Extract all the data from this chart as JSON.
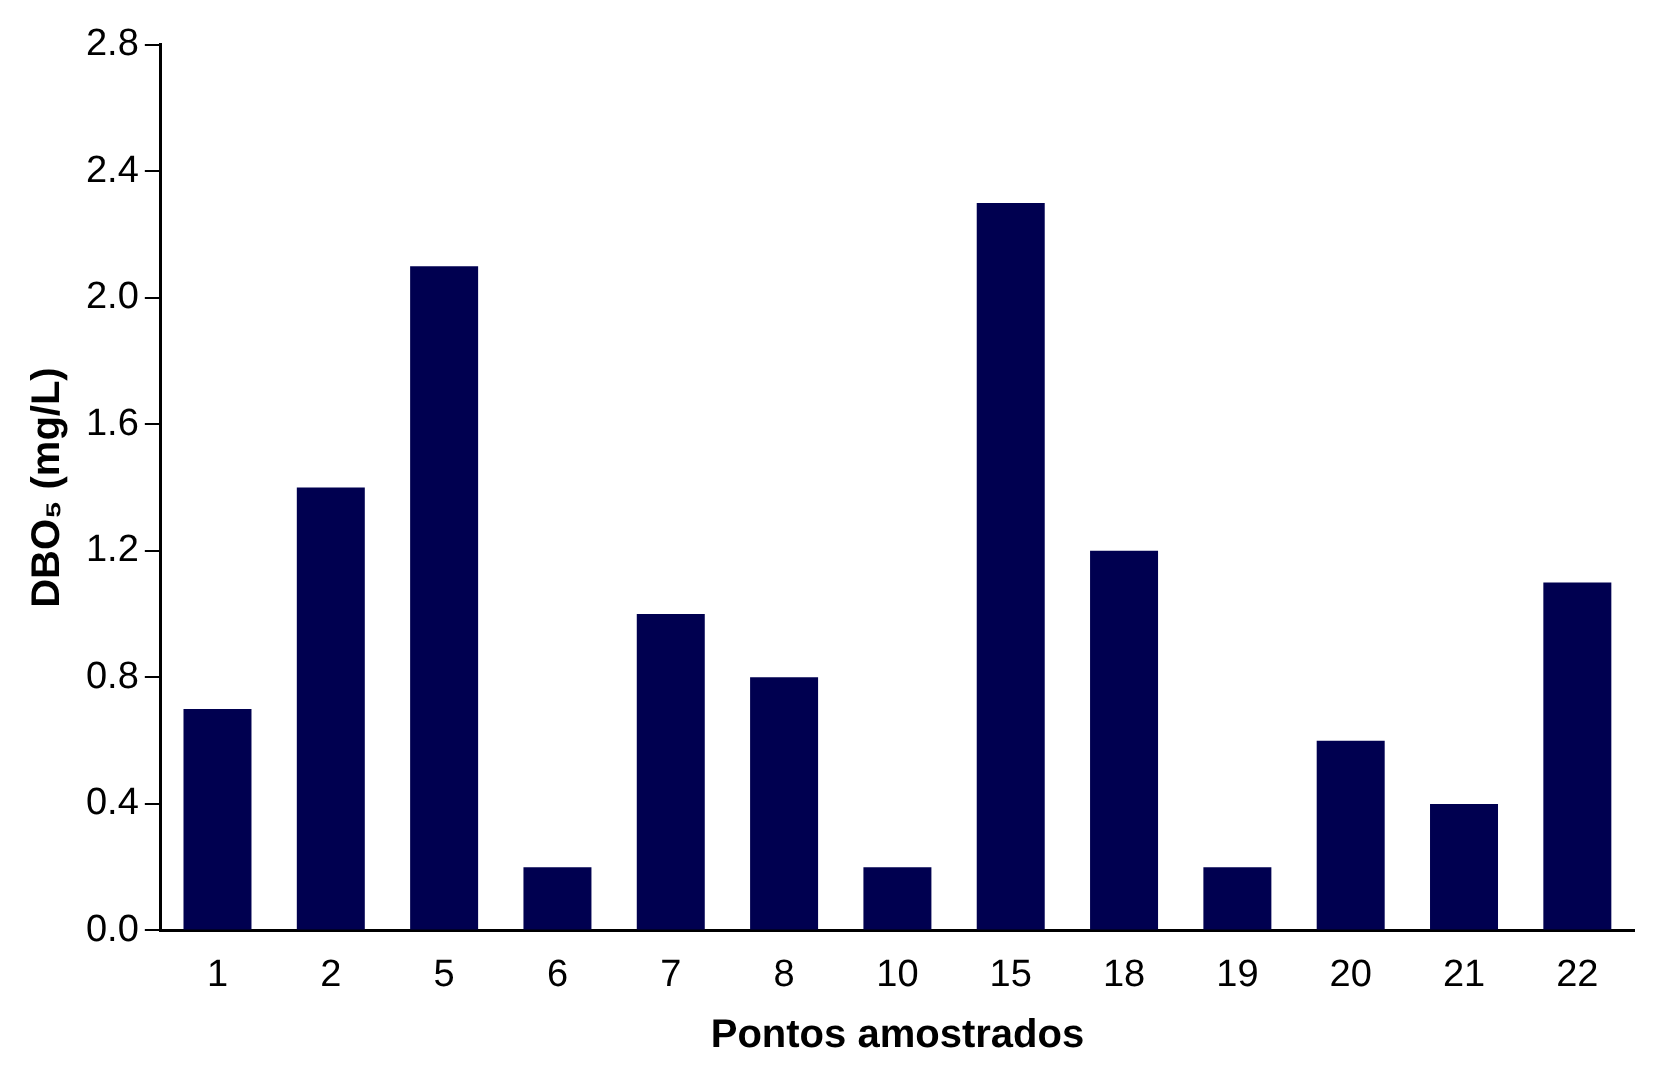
{
  "chart_data": {
    "type": "bar",
    "xlabel": "Pontos amostrados",
    "ylabel": "DBO₅ (mg/L)",
    "categories": [
      "1",
      "2",
      "5",
      "6",
      "7",
      "8",
      "10",
      "15",
      "18",
      "19",
      "20",
      "21",
      "22"
    ],
    "values": [
      0.7,
      1.4,
      2.1,
      0.2,
      1.0,
      0.8,
      0.2,
      2.3,
      1.2,
      0.2,
      0.6,
      0.4,
      1.1
    ],
    "color": "#000050",
    "ylim": [
      0,
      2.8
    ],
    "yticks": [
      {
        "value": 0,
        "label": "0.0"
      },
      {
        "value": 0.4,
        "label": "0.4"
      },
      {
        "value": 0.8,
        "label": "0.8"
      },
      {
        "value": 1.2,
        "label": "1.2"
      },
      {
        "value": 1.6,
        "label": "1.6"
      },
      {
        "value": 2.0,
        "label": "2.0"
      },
      {
        "value": 2.4,
        "label": "2.4"
      },
      {
        "value": 2.8,
        "label": "2.8"
      }
    ],
    "grid": false,
    "legend": false
  }
}
